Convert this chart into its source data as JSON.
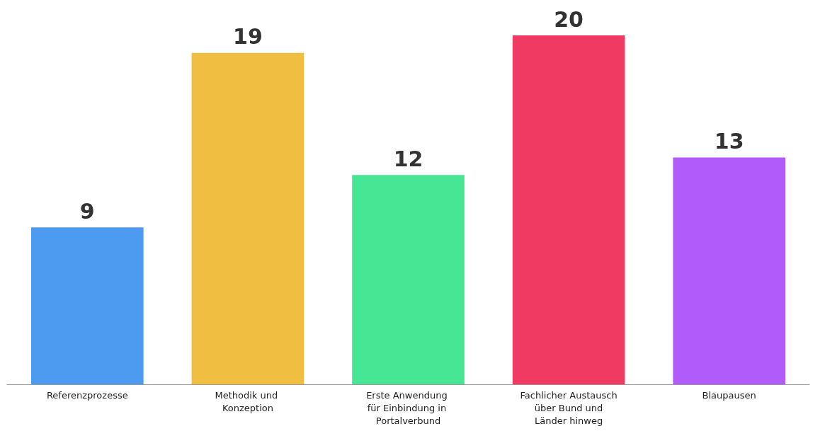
{
  "chart_data": {
    "type": "bar",
    "categories": [
      "Referenzprozesse",
      "Methodik und Konzeption",
      "Erste Anwendung für Einbindung in Portalverbund",
      "Fachlicher Austausch über Bund und Länder hinweg",
      "Blaupausen"
    ],
    "values": [
      9,
      19,
      12,
      20,
      13
    ],
    "colors": [
      "#4d9bf0",
      "#f0be41",
      "#46e695",
      "#f03a62",
      "#b25bfb"
    ],
    "data_labels": true
  }
}
